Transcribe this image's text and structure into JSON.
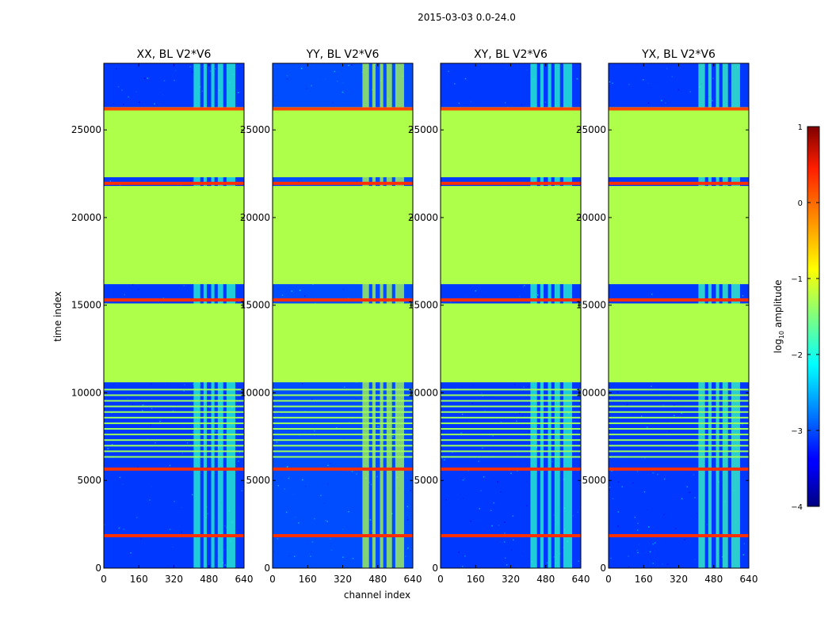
{
  "chart_data": {
    "type": "heatmap",
    "suptitle": "2015-03-03 0.0-24.0",
    "xlabel": "channel index",
    "ylabel": "time index",
    "xlim": [
      0,
      640
    ],
    "ylim": [
      0,
      28800
    ],
    "xticks": [
      0,
      160,
      320,
      480,
      640
    ],
    "xtick_labels": [
      "0",
      "160",
      "320",
      "480",
      "640"
    ],
    "yticks": [
      0,
      5000,
      10000,
      15000,
      20000,
      25000
    ],
    "ytick_labels": [
      "0",
      "5000",
      "10000",
      "15000",
      "20000",
      "25000"
    ],
    "colorbar": {
      "label": "log10 amplitude",
      "label_main": "log",
      "label_sub": "10",
      "label_tail": " amplitude",
      "range": [
        -4,
        1
      ],
      "ticks": [
        1,
        0,
        -1,
        -2,
        -3,
        -4
      ],
      "tick_labels": [
        "1",
        "0",
        "−1",
        "−2",
        "−3",
        "−4"
      ],
      "colormap": "jet"
    },
    "panels": [
      {
        "title": "XX, BL V2*V6",
        "rfi_level": -2.0,
        "noise_level": -3.1
      },
      {
        "title": "YY, BL V2*V6",
        "rfi_level": -1.2,
        "noise_level": -3.0
      },
      {
        "title": "XY, BL V2*V6",
        "rfi_level": -2.0,
        "noise_level": -3.1
      },
      {
        "title": "YX, BL V2*V6",
        "rfi_level": -1.9,
        "noise_level": -3.1
      }
    ],
    "flagged_time_ranges": [
      {
        "from": 26300,
        "to": 22300,
        "level": -1.2
      },
      {
        "from": 21800,
        "to": 16200,
        "level": -1.2
      },
      {
        "from": 15100,
        "to": 10600,
        "level": -1.2
      }
    ],
    "high_amplitude_rows": [
      {
        "time": 26200,
        "level": 0.2
      },
      {
        "time": 21950,
        "level": 0.3
      },
      {
        "time": 15300,
        "level": 0.3
      },
      {
        "time": 5650,
        "level": 0.3
      },
      {
        "time": 1850,
        "level": 0.3
      }
    ],
    "rfi_channel_ranges": [
      [
        410,
        440
      ],
      [
        455,
        470
      ],
      [
        490,
        505
      ],
      [
        520,
        545
      ],
      [
        560,
        600
      ]
    ]
  }
}
